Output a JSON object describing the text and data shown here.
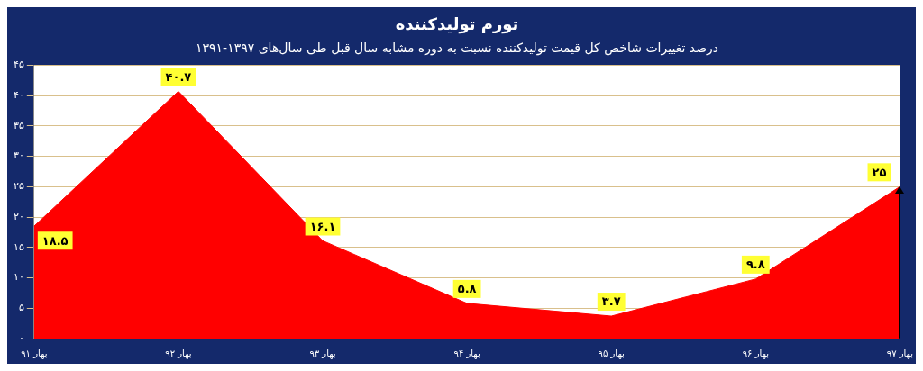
{
  "chart_data": {
    "type": "area",
    "title": "تورم تولیدکننده",
    "subtitle": "درصد تغییرات شاخص کل قیمت تولیدکننده نسبت به دوره مشابه سال قبل طی سال‌های ۱۳۹۷-۱۳۹۱",
    "categories": [
      "بهار ۹۱",
      "بهار ۹۲",
      "بهار ۹۳",
      "بهار ۹۴",
      "بهار ۹۵",
      "بهار ۹۶",
      "بهار ۹۷"
    ],
    "series": [
      {
        "color": "#ff0000",
        "values": [
          18.5,
          40.7,
          16.1,
          5.8,
          3.7,
          9.8,
          25
        ],
        "value_labels": [
          "۱۸.۵",
          "۴۰.۷",
          "۱۶.۱",
          "۵.۸",
          "۳.۷",
          "۹.۸",
          "۲۵"
        ]
      }
    ],
    "ylim": [
      0,
      45
    ],
    "yticks": [
      {
        "value": 0,
        "label": "۰"
      },
      {
        "value": 5,
        "label": "۵"
      },
      {
        "value": 10,
        "label": "۱۰"
      },
      {
        "value": 15,
        "label": "۱۵"
      },
      {
        "value": 20,
        "label": "۲۰"
      },
      {
        "value": 25,
        "label": "۲۵"
      },
      {
        "value": 30,
        "label": "۳۰"
      },
      {
        "value": 35,
        "label": "۳۵"
      },
      {
        "value": 40,
        "label": "۴۰"
      },
      {
        "value": 45,
        "label": "۴۵"
      }
    ],
    "grid": "y",
    "legend": false
  }
}
